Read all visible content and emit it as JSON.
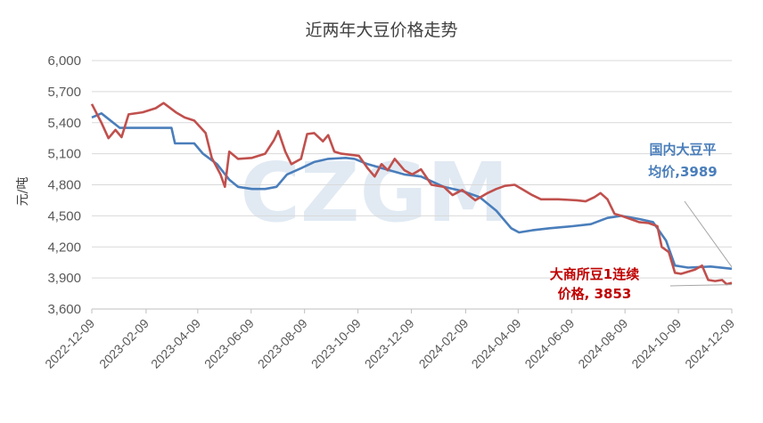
{
  "chart_data": {
    "type": "line",
    "title": "近两年大豆价格走势",
    "ylabel": "元/吨",
    "xlabel": "",
    "ylim": [
      3600,
      6000
    ],
    "yticks": [
      3600,
      3900,
      4200,
      4500,
      4800,
      5100,
      5400,
      5700,
      6000
    ],
    "ytick_labels": [
      "3,600",
      "3,900",
      "4,200",
      "4,500",
      "4,800",
      "5,100",
      "5,400",
      "5,700",
      "6,000"
    ],
    "xlim": [
      "2022-12-09",
      "2024-12-09"
    ],
    "xtick_labels": [
      "2022-12-09",
      "2023-02-09",
      "2023-04-09",
      "2023-06-09",
      "2023-08-09",
      "2023-10-09",
      "2023-12-09",
      "2024-02-09",
      "2024-04-09",
      "2024-06-09",
      "2024-08-09",
      "2024-10-09",
      "2024-12-09"
    ],
    "grid": "horizontal",
    "watermark": "CZGM",
    "series": [
      {
        "name": "国内大豆平均价",
        "color": "#4a7ebb",
        "points": [
          [
            "2022-12-09",
            5450
          ],
          [
            "2022-12-20",
            5490
          ],
          [
            "2023-01-10",
            5350
          ],
          [
            "2023-01-25",
            5350
          ],
          [
            "2023-02-20",
            5350
          ],
          [
            "2023-03-10",
            5350
          ],
          [
            "2023-03-14",
            5200
          ],
          [
            "2023-04-05",
            5200
          ],
          [
            "2023-04-15",
            5100
          ],
          [
            "2023-05-01",
            5000
          ],
          [
            "2023-05-15",
            4850
          ],
          [
            "2023-05-25",
            4780
          ],
          [
            "2023-06-10",
            4760
          ],
          [
            "2023-06-25",
            4760
          ],
          [
            "2023-07-08",
            4780
          ],
          [
            "2023-07-20",
            4900
          ],
          [
            "2023-08-05",
            4960
          ],
          [
            "2023-08-20",
            5020
          ],
          [
            "2023-09-05",
            5050
          ],
          [
            "2023-09-25",
            5060
          ],
          [
            "2023-10-05",
            5050
          ],
          [
            "2023-10-20",
            5000
          ],
          [
            "2023-11-10",
            4950
          ],
          [
            "2023-12-01",
            4900
          ],
          [
            "2023-12-20",
            4880
          ],
          [
            "2024-01-15",
            4780
          ],
          [
            "2024-02-05",
            4740
          ],
          [
            "2024-02-25",
            4680
          ],
          [
            "2024-03-15",
            4550
          ],
          [
            "2024-04-01",
            4380
          ],
          [
            "2024-04-10",
            4340
          ],
          [
            "2024-04-25",
            4360
          ],
          [
            "2024-05-15",
            4380
          ],
          [
            "2024-06-10",
            4400
          ],
          [
            "2024-07-01",
            4420
          ],
          [
            "2024-07-20",
            4480
          ],
          [
            "2024-08-05",
            4500
          ],
          [
            "2024-08-25",
            4470
          ],
          [
            "2024-09-10",
            4440
          ],
          [
            "2024-09-25",
            4260
          ],
          [
            "2024-10-05",
            4020
          ],
          [
            "2024-10-20",
            4000
          ],
          [
            "2024-11-15",
            4010
          ],
          [
            "2024-12-09",
            3989
          ]
        ]
      },
      {
        "name": "大商所豆1连续价格",
        "color": "#c0504d",
        "points": [
          [
            "2022-12-09",
            5580
          ],
          [
            "2022-12-20",
            5400
          ],
          [
            "2022-12-28",
            5250
          ],
          [
            "2023-01-05",
            5330
          ],
          [
            "2023-01-12",
            5260
          ],
          [
            "2023-01-20",
            5480
          ],
          [
            "2023-02-05",
            5500
          ],
          [
            "2023-02-20",
            5540
          ],
          [
            "2023-03-01",
            5590
          ],
          [
            "2023-03-15",
            5500
          ],
          [
            "2023-03-25",
            5450
          ],
          [
            "2023-04-05",
            5420
          ],
          [
            "2023-04-18",
            5300
          ],
          [
            "2023-04-25",
            5060
          ],
          [
            "2023-05-05",
            4900
          ],
          [
            "2023-05-10",
            4780
          ],
          [
            "2023-05-15",
            5120
          ],
          [
            "2023-05-25",
            5050
          ],
          [
            "2023-06-10",
            5060
          ],
          [
            "2023-06-25",
            5100
          ],
          [
            "2023-07-05",
            5230
          ],
          [
            "2023-07-10",
            5320
          ],
          [
            "2023-07-18",
            5120
          ],
          [
            "2023-07-25",
            5000
          ],
          [
            "2023-08-05",
            5050
          ],
          [
            "2023-08-12",
            5290
          ],
          [
            "2023-08-20",
            5300
          ],
          [
            "2023-08-30",
            5220
          ],
          [
            "2023-09-05",
            5280
          ],
          [
            "2023-09-12",
            5120
          ],
          [
            "2023-09-20",
            5100
          ],
          [
            "2023-10-10",
            5080
          ],
          [
            "2023-10-20",
            4960
          ],
          [
            "2023-10-28",
            4880
          ],
          [
            "2023-11-05",
            5000
          ],
          [
            "2023-11-12",
            4940
          ],
          [
            "2023-11-20",
            5050
          ],
          [
            "2023-12-01",
            4940
          ],
          [
            "2023-12-10",
            4900
          ],
          [
            "2023-12-20",
            4950
          ],
          [
            "2024-01-01",
            4800
          ],
          [
            "2024-01-15",
            4780
          ],
          [
            "2024-01-25",
            4700
          ],
          [
            "2024-02-05",
            4750
          ],
          [
            "2024-02-20",
            4650
          ],
          [
            "2024-03-05",
            4720
          ],
          [
            "2024-03-15",
            4760
          ],
          [
            "2024-03-25",
            4790
          ],
          [
            "2024-04-05",
            4800
          ],
          [
            "2024-04-15",
            4750
          ],
          [
            "2024-04-25",
            4700
          ],
          [
            "2024-05-05",
            4660
          ],
          [
            "2024-05-25",
            4660
          ],
          [
            "2024-06-15",
            4650
          ],
          [
            "2024-06-25",
            4640
          ],
          [
            "2024-07-05",
            4680
          ],
          [
            "2024-07-12",
            4720
          ],
          [
            "2024-07-20",
            4660
          ],
          [
            "2024-07-28",
            4520
          ],
          [
            "2024-08-05",
            4500
          ],
          [
            "2024-08-15",
            4470
          ],
          [
            "2024-08-25",
            4440
          ],
          [
            "2024-09-05",
            4430
          ],
          [
            "2024-09-15",
            4400
          ],
          [
            "2024-09-20",
            4200
          ],
          [
            "2024-09-28",
            4150
          ],
          [
            "2024-10-05",
            3950
          ],
          [
            "2024-10-12",
            3940
          ],
          [
            "2024-10-20",
            3960
          ],
          [
            "2024-10-28",
            3980
          ],
          [
            "2024-11-05",
            4020
          ],
          [
            "2024-11-12",
            3880
          ],
          [
            "2024-11-20",
            3870
          ],
          [
            "2024-11-28",
            3880
          ],
          [
            "2024-12-03",
            3840
          ],
          [
            "2024-12-09",
            3853
          ]
        ]
      }
    ],
    "annotations": [
      {
        "lines": [
          "国内大豆平",
          "均价,3989"
        ],
        "color": "#4a7ebb"
      },
      {
        "lines": [
          "大商所豆1连续",
          "价格, 3853"
        ],
        "color": "#c00000"
      }
    ]
  }
}
